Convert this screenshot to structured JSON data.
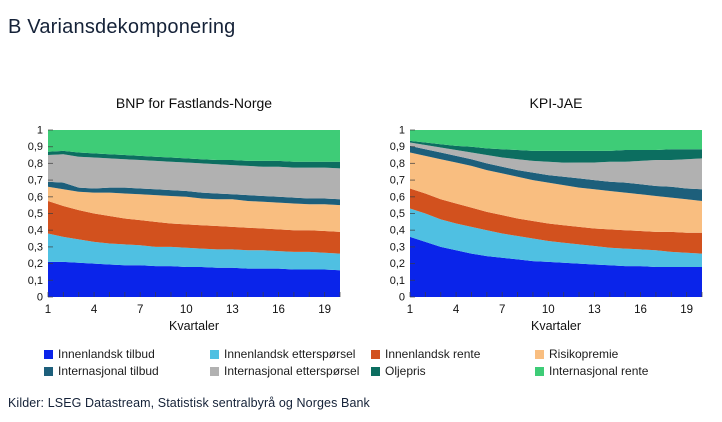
{
  "page": {
    "title": "B Variansdekomponering",
    "source": "Kilder: LSEG Datastream, Statistisk sentralbyrå og Norges Bank",
    "colors": {
      "title_navy": "#152238",
      "axis_text": "#111111",
      "background": "#ffffff"
    }
  },
  "legend": {
    "position": "bottom",
    "rows": 2,
    "columns": 4
  },
  "chart_data": [
    {
      "type": "area",
      "stacked": true,
      "title": "BNP for Fastlands-Norge",
      "xlabel": "Kvartaler",
      "ylabel": "",
      "grid": false,
      "ylim": [
        0,
        1
      ],
      "yticks": [
        0,
        0.1,
        0.2,
        0.3,
        0.4,
        0.5,
        0.6,
        0.7,
        0.8,
        0.9,
        1
      ],
      "yticklabels": [
        "0",
        "0,1",
        "0,2",
        "0,3",
        "0,4",
        "0,5",
        "0,6",
        "0,7",
        "0,8",
        "0,9",
        "1"
      ],
      "x": [
        1,
        2,
        3,
        4,
        5,
        6,
        7,
        8,
        9,
        10,
        11,
        12,
        13,
        14,
        15,
        16,
        17,
        18,
        19,
        20
      ],
      "xticks": [
        1,
        4,
        7,
        10,
        13,
        16,
        19
      ],
      "series": [
        {
          "name": "Innenlandsk tilbud",
          "color": "#0a24ea",
          "values": [
            0.21,
            0.21,
            0.205,
            0.2,
            0.195,
            0.19,
            0.19,
            0.185,
            0.185,
            0.18,
            0.18,
            0.175,
            0.175,
            0.17,
            0.17,
            0.17,
            0.165,
            0.165,
            0.165,
            0.16
          ]
        },
        {
          "name": "Innenlandsk etterspørsel",
          "color": "#4fc0e2",
          "values": [
            0.17,
            0.15,
            0.14,
            0.13,
            0.125,
            0.125,
            0.12,
            0.115,
            0.115,
            0.115,
            0.11,
            0.11,
            0.11,
            0.11,
            0.11,
            0.105,
            0.105,
            0.105,
            0.1,
            0.1
          ]
        },
        {
          "name": "Innenlandsk rente",
          "color": "#d2511e",
          "values": [
            0.195,
            0.185,
            0.175,
            0.17,
            0.165,
            0.155,
            0.15,
            0.15,
            0.14,
            0.14,
            0.14,
            0.14,
            0.135,
            0.135,
            0.13,
            0.13,
            0.13,
            0.13,
            0.13,
            0.13
          ]
        },
        {
          "name": "Risikopremie",
          "color": "#f9be80",
          "values": [
            0.085,
            0.1,
            0.11,
            0.125,
            0.14,
            0.15,
            0.155,
            0.16,
            0.165,
            0.165,
            0.16,
            0.16,
            0.165,
            0.16,
            0.16,
            0.16,
            0.16,
            0.155,
            0.16,
            0.16
          ]
        },
        {
          "name": "Internasjonal tilbud",
          "color": "#1d5f7b",
          "values": [
            0.03,
            0.04,
            0.025,
            0.025,
            0.03,
            0.035,
            0.035,
            0.035,
            0.035,
            0.035,
            0.035,
            0.035,
            0.03,
            0.035,
            0.035,
            0.035,
            0.035,
            0.035,
            0.035,
            0.035
          ]
        },
        {
          "name": "Internasjonal etterspørsel",
          "color": "#b1b1b1",
          "values": [
            0.16,
            0.17,
            0.185,
            0.185,
            0.175,
            0.17,
            0.17,
            0.17,
            0.17,
            0.17,
            0.175,
            0.175,
            0.175,
            0.175,
            0.175,
            0.18,
            0.18,
            0.185,
            0.185,
            0.185
          ]
        },
        {
          "name": "Oljepris",
          "color": "#0c6e60",
          "values": [
            0.02,
            0.02,
            0.025,
            0.025,
            0.025,
            0.025,
            0.025,
            0.025,
            0.025,
            0.025,
            0.025,
            0.025,
            0.03,
            0.03,
            0.035,
            0.035,
            0.035,
            0.035,
            0.035,
            0.04
          ]
        },
        {
          "name": "Internasjonal rente",
          "color": "#3ecc77",
          "values": [
            0.13,
            0.125,
            0.135,
            0.14,
            0.145,
            0.15,
            0.155,
            0.16,
            0.165,
            0.17,
            0.175,
            0.18,
            0.18,
            0.185,
            0.185,
            0.185,
            0.19,
            0.19,
            0.19,
            0.19
          ]
        }
      ]
    },
    {
      "type": "area",
      "stacked": true,
      "title": "KPI-JAE",
      "xlabel": "Kvartaler",
      "ylabel": "",
      "grid": false,
      "ylim": [
        0,
        1
      ],
      "yticks": [
        0,
        0.1,
        0.2,
        0.3,
        0.4,
        0.5,
        0.6,
        0.7,
        0.8,
        0.9,
        1
      ],
      "yticklabels": [
        "0",
        "0,1",
        "0,2",
        "0,3",
        "0,4",
        "0,5",
        "0,6",
        "0,7",
        "0,8",
        "0,9",
        "1"
      ],
      "x": [
        1,
        2,
        3,
        4,
        5,
        6,
        7,
        8,
        9,
        10,
        11,
        12,
        13,
        14,
        15,
        16,
        17,
        18,
        19,
        20
      ],
      "xticks": [
        1,
        4,
        7,
        10,
        13,
        16,
        19
      ],
      "series": [
        {
          "name": "Innenlandsk tilbud",
          "color": "#0a24ea",
          "values": [
            0.36,
            0.33,
            0.3,
            0.28,
            0.26,
            0.245,
            0.235,
            0.225,
            0.215,
            0.21,
            0.205,
            0.2,
            0.195,
            0.19,
            0.185,
            0.185,
            0.18,
            0.18,
            0.18,
            0.18
          ]
        },
        {
          "name": "Innenlandsk etterspørsel",
          "color": "#4fc0e2",
          "values": [
            0.17,
            0.17,
            0.165,
            0.16,
            0.16,
            0.155,
            0.145,
            0.14,
            0.135,
            0.125,
            0.12,
            0.115,
            0.11,
            0.105,
            0.105,
            0.1,
            0.1,
            0.09,
            0.085,
            0.08
          ]
        },
        {
          "name": "Innenlandsk rente",
          "color": "#d2511e",
          "values": [
            0.12,
            0.12,
            0.12,
            0.12,
            0.115,
            0.11,
            0.11,
            0.105,
            0.105,
            0.105,
            0.105,
            0.105,
            0.105,
            0.11,
            0.11,
            0.11,
            0.11,
            0.12,
            0.12,
            0.125
          ]
        },
        {
          "name": "Risikopremie",
          "color": "#f9be80",
          "values": [
            0.215,
            0.225,
            0.24,
            0.245,
            0.25,
            0.25,
            0.25,
            0.25,
            0.245,
            0.245,
            0.24,
            0.235,
            0.235,
            0.23,
            0.225,
            0.22,
            0.215,
            0.205,
            0.2,
            0.19
          ]
        },
        {
          "name": "Internasjonal tilbud",
          "color": "#1d5f7b",
          "values": [
            0.04,
            0.04,
            0.04,
            0.04,
            0.04,
            0.04,
            0.04,
            0.04,
            0.045,
            0.045,
            0.05,
            0.055,
            0.055,
            0.055,
            0.06,
            0.06,
            0.06,
            0.065,
            0.065,
            0.07
          ]
        },
        {
          "name": "Internasjonal etterspørsel",
          "color": "#b1b1b1",
          "values": [
            0.02,
            0.025,
            0.03,
            0.035,
            0.04,
            0.05,
            0.055,
            0.065,
            0.07,
            0.08,
            0.085,
            0.095,
            0.105,
            0.12,
            0.125,
            0.14,
            0.155,
            0.16,
            0.175,
            0.185
          ]
        },
        {
          "name": "Oljepris",
          "color": "#0c6e60",
          "values": [
            0.01,
            0.015,
            0.02,
            0.025,
            0.035,
            0.04,
            0.05,
            0.055,
            0.06,
            0.065,
            0.07,
            0.07,
            0.07,
            0.065,
            0.07,
            0.065,
            0.06,
            0.065,
            0.06,
            0.055
          ]
        },
        {
          "name": "Internasjonal rente",
          "color": "#3ecc77",
          "values": [
            0.065,
            0.075,
            0.085,
            0.095,
            0.1,
            0.11,
            0.115,
            0.12,
            0.125,
            0.125,
            0.125,
            0.125,
            0.125,
            0.125,
            0.12,
            0.12,
            0.12,
            0.115,
            0.115,
            0.115
          ]
        }
      ]
    }
  ]
}
